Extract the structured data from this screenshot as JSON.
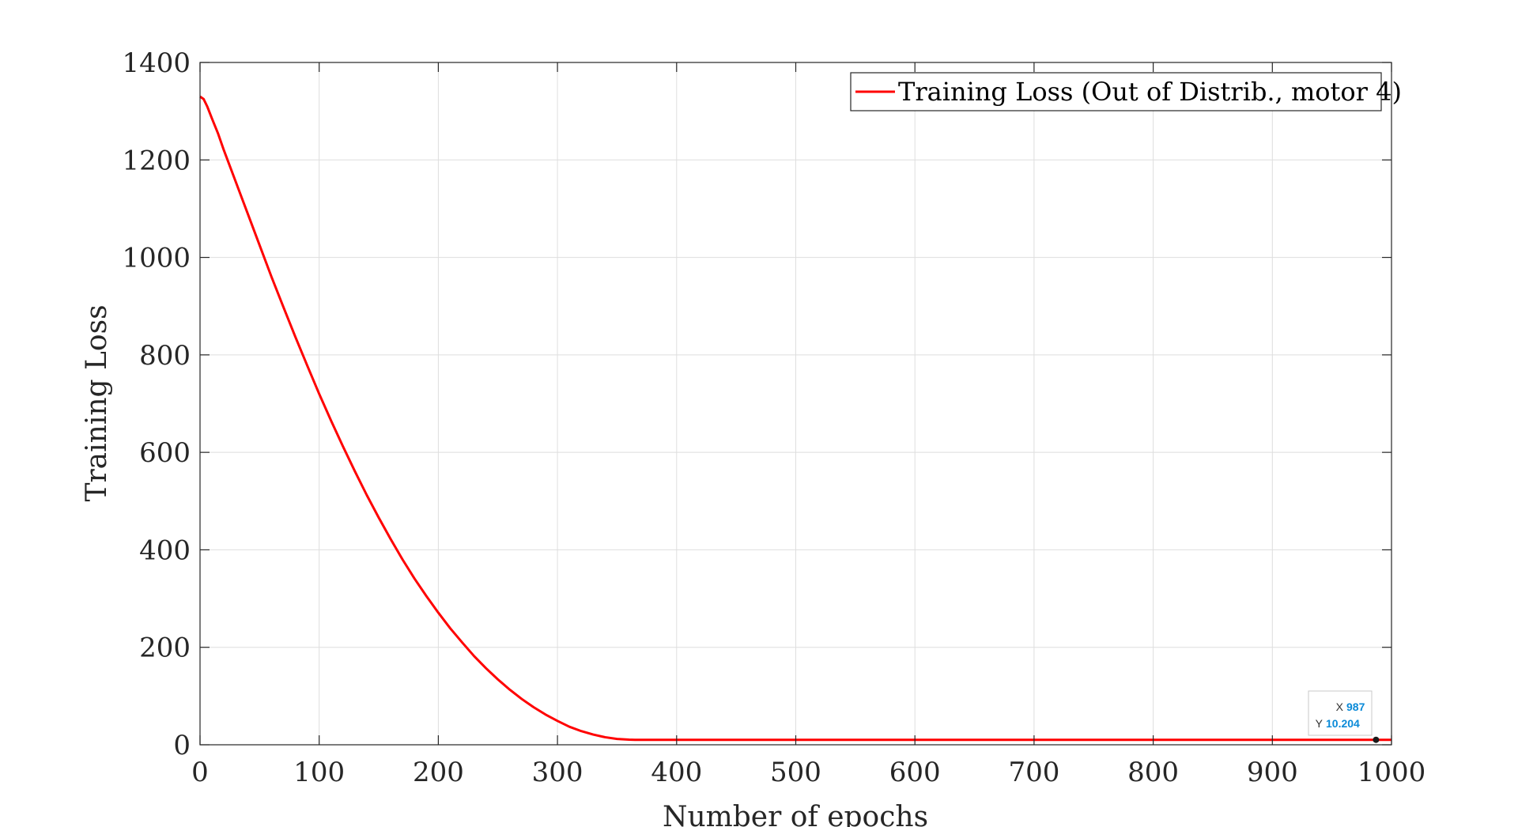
{
  "chart_data": {
    "type": "line",
    "title": "",
    "xlabel": "Number of epochs",
    "ylabel": "Training Loss",
    "xlim": [
      0,
      1000
    ],
    "ylim": [
      0,
      1400
    ],
    "xticks": [
      0,
      100,
      200,
      300,
      400,
      500,
      600,
      700,
      800,
      900,
      1000
    ],
    "yticks": [
      0,
      200,
      400,
      600,
      800,
      1000,
      1200,
      1400
    ],
    "grid": true,
    "legend_position": "top-right",
    "series": [
      {
        "name": "Training Loss (Out of Distrib., motor 4)",
        "color": "#ff0000",
        "x": [
          0,
          3,
          6,
          10,
          15,
          20,
          30,
          40,
          50,
          60,
          70,
          80,
          90,
          100,
          110,
          120,
          130,
          140,
          150,
          160,
          170,
          180,
          190,
          200,
          210,
          220,
          230,
          240,
          250,
          260,
          270,
          280,
          290,
          300,
          310,
          320,
          330,
          340,
          350,
          360,
          365,
          370,
          400,
          500,
          600,
          700,
          800,
          900,
          987,
          1000
        ],
        "y": [
          1330,
          1325,
          1310,
          1285,
          1255,
          1220,
          1155,
          1090,
          1025,
          960,
          898,
          837,
          778,
          720,
          665,
          612,
          561,
          512,
          466,
          422,
          380,
          341,
          305,
          271,
          239,
          210,
          182,
          157,
          134,
          113,
          94,
          77,
          62,
          49,
          37,
          28,
          21,
          15.5,
          12,
          10.5,
          10.2,
          10.2,
          10.2,
          10.2,
          10.2,
          10.2,
          10.2,
          10.2,
          10.204,
          10.2
        ]
      }
    ],
    "datatip": {
      "x_label": "X",
      "x_value": "987",
      "y_label": "Y",
      "y_value": "10.204",
      "x": 987,
      "y": 10.204
    }
  },
  "colors": {
    "line": "#ff0000",
    "grid": "#dedede",
    "axis": "#262626",
    "datatip_value": "#0a8ad8"
  }
}
